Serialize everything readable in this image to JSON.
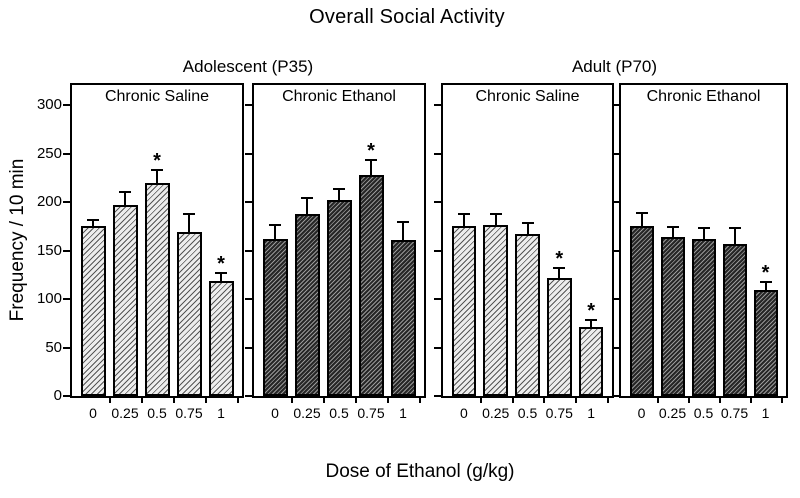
{
  "figure": {
    "title": "Overall Social Activity",
    "xlabel": "Dose of Ethanol (g/kg)",
    "ylabel": "Frequency / 10 min"
  },
  "chart_data": {
    "type": "bar",
    "title": "Overall Social Activity",
    "xlabel": "Dose of Ethanol (g/kg)",
    "ylabel": "Frequency / 10 min",
    "ylim": [
      0,
      322
    ],
    "yticks": [
      0,
      50,
      100,
      150,
      200,
      250,
      300
    ],
    "categories": [
      "0",
      "0.25",
      "0.5",
      "0.75",
      "1"
    ],
    "significance_marker": "*",
    "grid": false,
    "legend_position": "none",
    "groups": [
      {
        "label": "Adolescent (P35)",
        "panels": [
          {
            "label": "Chronic Saline",
            "bar_style": "light-hatched",
            "values": [
              175,
              197,
              220,
              169,
              119
            ],
            "errors": [
              6,
              13,
              13,
              19,
              8
            ],
            "significant": [
              false,
              false,
              true,
              false,
              true
            ]
          },
          {
            "label": "Chronic Ethanol",
            "bar_style": "dark-hatched",
            "values": [
              162,
              188,
              202,
              228,
              161
            ],
            "errors": [
              14,
              16,
              11,
              15,
              19
            ],
            "significant": [
              false,
              false,
              false,
              true,
              false
            ]
          }
        ]
      },
      {
        "label": "Adult (P70)",
        "panels": [
          {
            "label": "Chronic Saline",
            "bar_style": "light-hatched",
            "values": [
              175,
              176,
              167,
              122,
              71
            ],
            "errors": [
              12,
              11,
              11,
              10,
              7
            ],
            "significant": [
              false,
              false,
              false,
              true,
              true
            ]
          },
          {
            "label": "Chronic Ethanol",
            "bar_style": "dark-hatched",
            "values": [
              175,
              164,
              162,
              157,
              109
            ],
            "errors": [
              13,
              10,
              11,
              17,
              8
            ],
            "significant": [
              false,
              false,
              false,
              false,
              true
            ]
          }
        ]
      }
    ]
  },
  "colors": {
    "background": "#ffffff",
    "axis": "#000000",
    "text": "#000000",
    "bar_light_bg": "#ededed",
    "bar_light_hatch": "#565656",
    "bar_dark_bg": "#262626",
    "bar_dark_hatch": "#999999"
  }
}
